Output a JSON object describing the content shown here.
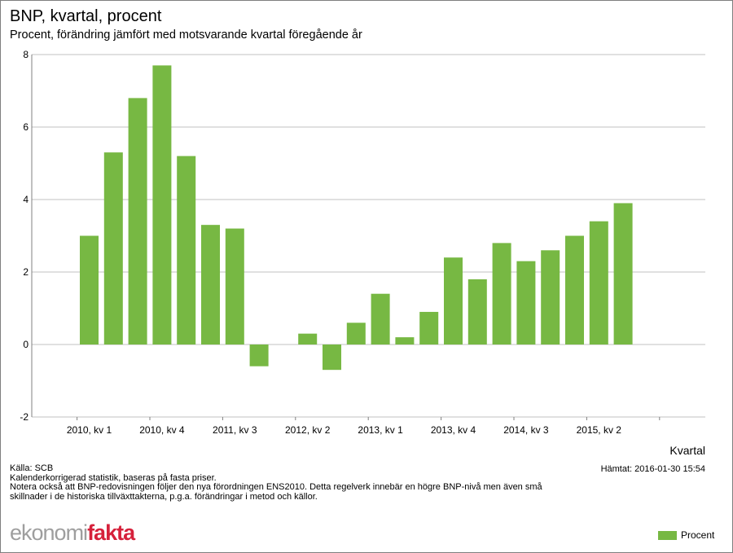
{
  "colors": {
    "bar": "#77b843",
    "grid": "#c0c0c0",
    "axis": "#808080",
    "logo_primary": "#9e9e9e",
    "logo_accent": "#d6213b"
  },
  "header": {
    "title": "BNP, kvartal, procent",
    "subtitle": "Procent, förändring jämfört med motsvarande kvartal föregående år"
  },
  "footer": {
    "source": "Källa: SCB",
    "notes": [
      "Kalenderkorrigerad statistik, baseras på fasta priser.",
      "Notera också att BNP-redovisningen följer den nya förordningen ENS2010. Detta regelverk innebär en högre BNP-nivå men även små",
      "skillnader i de historiska tillväxttakterna, p.g.a. förändringar i metod och källor."
    ],
    "fetched": "Hämtat: 2016-01-30 15:54",
    "logo_part1": "ekonomi",
    "logo_part2": "fakta"
  },
  "chart_data": {
    "type": "bar",
    "title": "BNP, kvartal, procent",
    "subtitle": "Procent, förändring jämfört med motsvarande kvartal föregående år",
    "xlabel": "Kvartal",
    "ylabel": "",
    "ylim": [
      -2,
      8
    ],
    "yticks": [
      -2,
      0,
      2,
      4,
      6,
      8
    ],
    "grid": true,
    "legend_position": "bottom-right",
    "categories": [
      "2010, kv 1",
      "2010, kv 2",
      "2010, kv 3",
      "2010, kv 4",
      "2011, kv 1",
      "2011, kv 2",
      "2011, kv 3",
      "2011, kv 4",
      "2012, kv 1",
      "2012, kv 2",
      "2012, kv 3",
      "2012, kv 4",
      "2013, kv 1",
      "2013, kv 2",
      "2013, kv 3",
      "2013, kv 4",
      "2014, kv 1",
      "2014, kv 2",
      "2014, kv 3",
      "2014, kv 4",
      "2015, kv 1",
      "2015, kv 2",
      "2015, kv 3",
      "2015, kv 4"
    ],
    "tick_label_indices": [
      0,
      3,
      6,
      9,
      12,
      15,
      18,
      21
    ],
    "series": [
      {
        "name": "Procent",
        "values": [
          3.0,
          5.3,
          6.8,
          7.7,
          5.2,
          3.3,
          3.2,
          -0.6,
          0.0,
          0.3,
          -0.7,
          0.6,
          1.4,
          0.2,
          0.9,
          2.4,
          1.8,
          2.8,
          2.3,
          2.6,
          3.0,
          3.4,
          3.9,
          null
        ]
      }
    ]
  }
}
